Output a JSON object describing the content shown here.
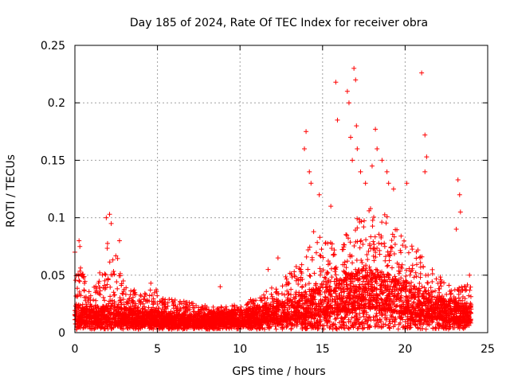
{
  "chart_data": {
    "type": "scatter",
    "title": "Day 185 of 2024, Rate Of TEC Index for receiver obra",
    "xlabel": "GPS time / hours",
    "ylabel": "ROTI / TECUs",
    "xlim": [
      0,
      25
    ],
    "ylim": [
      0,
      0.25
    ],
    "xticks": [
      0,
      5,
      10,
      15,
      20,
      25
    ],
    "yticks": [
      0,
      0.05,
      0.1,
      0.15,
      0.2,
      0.25
    ],
    "xtick_labels": [
      "0",
      "5",
      "10",
      "15",
      "20",
      "25"
    ],
    "ytick_labels": [
      "0",
      "0.05",
      "0.1",
      "0.15",
      "0.2",
      "0.25"
    ],
    "grid": true,
    "marker": "plus",
    "color": "#ff0000",
    "series": [
      {
        "name": "ROTI",
        "envelope": {
          "x": [
            0,
            0.3,
            0.7,
            1.2,
            1.7,
            2.0,
            2.3,
            2.7,
            3.2,
            4.0,
            4.8,
            5.5,
            6.5,
            7.5,
            8.5,
            9.5,
            10.5,
            11.5,
            12.5,
            13.5,
            14.0,
            14.5,
            15.0,
            15.5,
            16.0,
            16.5,
            17.0,
            17.5,
            18.0,
            18.5,
            19.0,
            19.5,
            20.0,
            20.5,
            21.0,
            21.5,
            22.0,
            22.5,
            23.0,
            23.5,
            24.0
          ],
          "upper": [
            0.05,
            0.065,
            0.04,
            0.04,
            0.06,
            0.09,
            0.08,
            0.06,
            0.04,
            0.035,
            0.04,
            0.03,
            0.028,
            0.025,
            0.022,
            0.025,
            0.028,
            0.035,
            0.045,
            0.06,
            0.08,
            0.09,
            0.085,
            0.08,
            0.07,
            0.09,
            0.1,
            0.1,
            0.11,
            0.11,
            0.1,
            0.09,
            0.08,
            0.075,
            0.07,
            0.06,
            0.05,
            0.045,
            0.04,
            0.04,
            0.045
          ],
          "base": [
            0.016,
            0.015,
            0.013,
            0.013,
            0.014,
            0.015,
            0.015,
            0.014,
            0.013,
            0.012,
            0.012,
            0.011,
            0.01,
            0.01,
            0.011,
            0.012,
            0.013,
            0.015,
            0.017,
            0.02,
            0.022,
            0.024,
            0.026,
            0.028,
            0.03,
            0.032,
            0.034,
            0.035,
            0.035,
            0.034,
            0.032,
            0.03,
            0.028,
            0.026,
            0.024,
            0.022,
            0.02,
            0.018,
            0.017,
            0.016,
            0.016
          ]
        },
        "outliers": [
          {
            "x": 0.0,
            "y": 0.07
          },
          {
            "x": 0.25,
            "y": 0.08
          },
          {
            "x": 0.3,
            "y": 0.075
          },
          {
            "x": 1.9,
            "y": 0.1
          },
          {
            "x": 2.1,
            "y": 0.103
          },
          {
            "x": 2.2,
            "y": 0.095
          },
          {
            "x": 2.7,
            "y": 0.08
          },
          {
            "x": 4.6,
            "y": 0.043
          },
          {
            "x": 8.8,
            "y": 0.04
          },
          {
            "x": 11.7,
            "y": 0.055
          },
          {
            "x": 12.3,
            "y": 0.065
          },
          {
            "x": 13.9,
            "y": 0.16
          },
          {
            "x": 14.0,
            "y": 0.175
          },
          {
            "x": 14.2,
            "y": 0.14
          },
          {
            "x": 14.3,
            "y": 0.13
          },
          {
            "x": 14.8,
            "y": 0.12
          },
          {
            "x": 15.5,
            "y": 0.11
          },
          {
            "x": 15.8,
            "y": 0.218
          },
          {
            "x": 15.9,
            "y": 0.185
          },
          {
            "x": 16.5,
            "y": 0.21
          },
          {
            "x": 16.6,
            "y": 0.2
          },
          {
            "x": 16.7,
            "y": 0.17
          },
          {
            "x": 16.8,
            "y": 0.15
          },
          {
            "x": 16.9,
            "y": 0.23
          },
          {
            "x": 17.0,
            "y": 0.22
          },
          {
            "x": 17.05,
            "y": 0.18
          },
          {
            "x": 17.1,
            "y": 0.16
          },
          {
            "x": 17.3,
            "y": 0.14
          },
          {
            "x": 17.6,
            "y": 0.13
          },
          {
            "x": 18.2,
            "y": 0.177
          },
          {
            "x": 18.3,
            "y": 0.16
          },
          {
            "x": 18.0,
            "y": 0.145
          },
          {
            "x": 18.6,
            "y": 0.15
          },
          {
            "x": 18.9,
            "y": 0.14
          },
          {
            "x": 19.0,
            "y": 0.13
          },
          {
            "x": 19.3,
            "y": 0.125
          },
          {
            "x": 20.1,
            "y": 0.13
          },
          {
            "x": 21.0,
            "y": 0.226
          },
          {
            "x": 21.2,
            "y": 0.172
          },
          {
            "x": 21.3,
            "y": 0.153
          },
          {
            "x": 21.2,
            "y": 0.14
          },
          {
            "x": 23.2,
            "y": 0.133
          },
          {
            "x": 23.3,
            "y": 0.12
          },
          {
            "x": 23.35,
            "y": 0.105
          },
          {
            "x": 23.1,
            "y": 0.09
          },
          {
            "x": 23.9,
            "y": 0.05
          }
        ]
      }
    ]
  }
}
